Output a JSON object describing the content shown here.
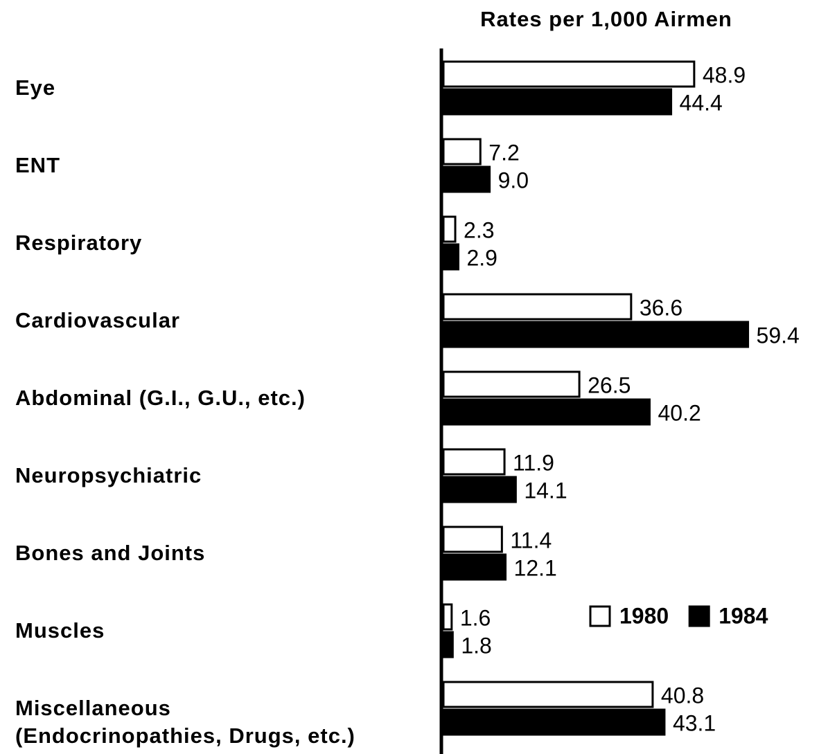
{
  "chart_data": {
    "type": "hbar",
    "title": "Rates per 1,000 Airmen",
    "categories": [
      "Eye",
      "ENT",
      "Respiratory",
      "Cardiovascular",
      "Abdominal (G.I., G.U., etc.)",
      "Neuropsychiatric",
      "Bones and Joints",
      "Muscles",
      "Miscellaneous\n(Endocrinopathies, Drugs, etc.)"
    ],
    "series": [
      {
        "name": "1980",
        "color": "#ffffff",
        "values": [
          48.9,
          7.2,
          2.3,
          36.6,
          26.5,
          11.9,
          11.4,
          1.6,
          40.8
        ],
        "value_labels": [
          "48.9",
          "7.2",
          "2.3",
          "36.6",
          "26.5",
          "11.9",
          "11.4",
          "1.6",
          "40.8"
        ]
      },
      {
        "name": "1984",
        "color": "#000000",
        "values": [
          44.4,
          9.0,
          2.9,
          59.4,
          40.2,
          14.1,
          12.1,
          1.8,
          43.1
        ],
        "value_labels": [
          "44.4",
          "9.0",
          "2.9",
          "59.4",
          "40.2",
          "14.1",
          "12.1",
          "1.8",
          "43.1"
        ]
      }
    ],
    "xlim": [
      0,
      60
    ],
    "legend": "lower right"
  }
}
